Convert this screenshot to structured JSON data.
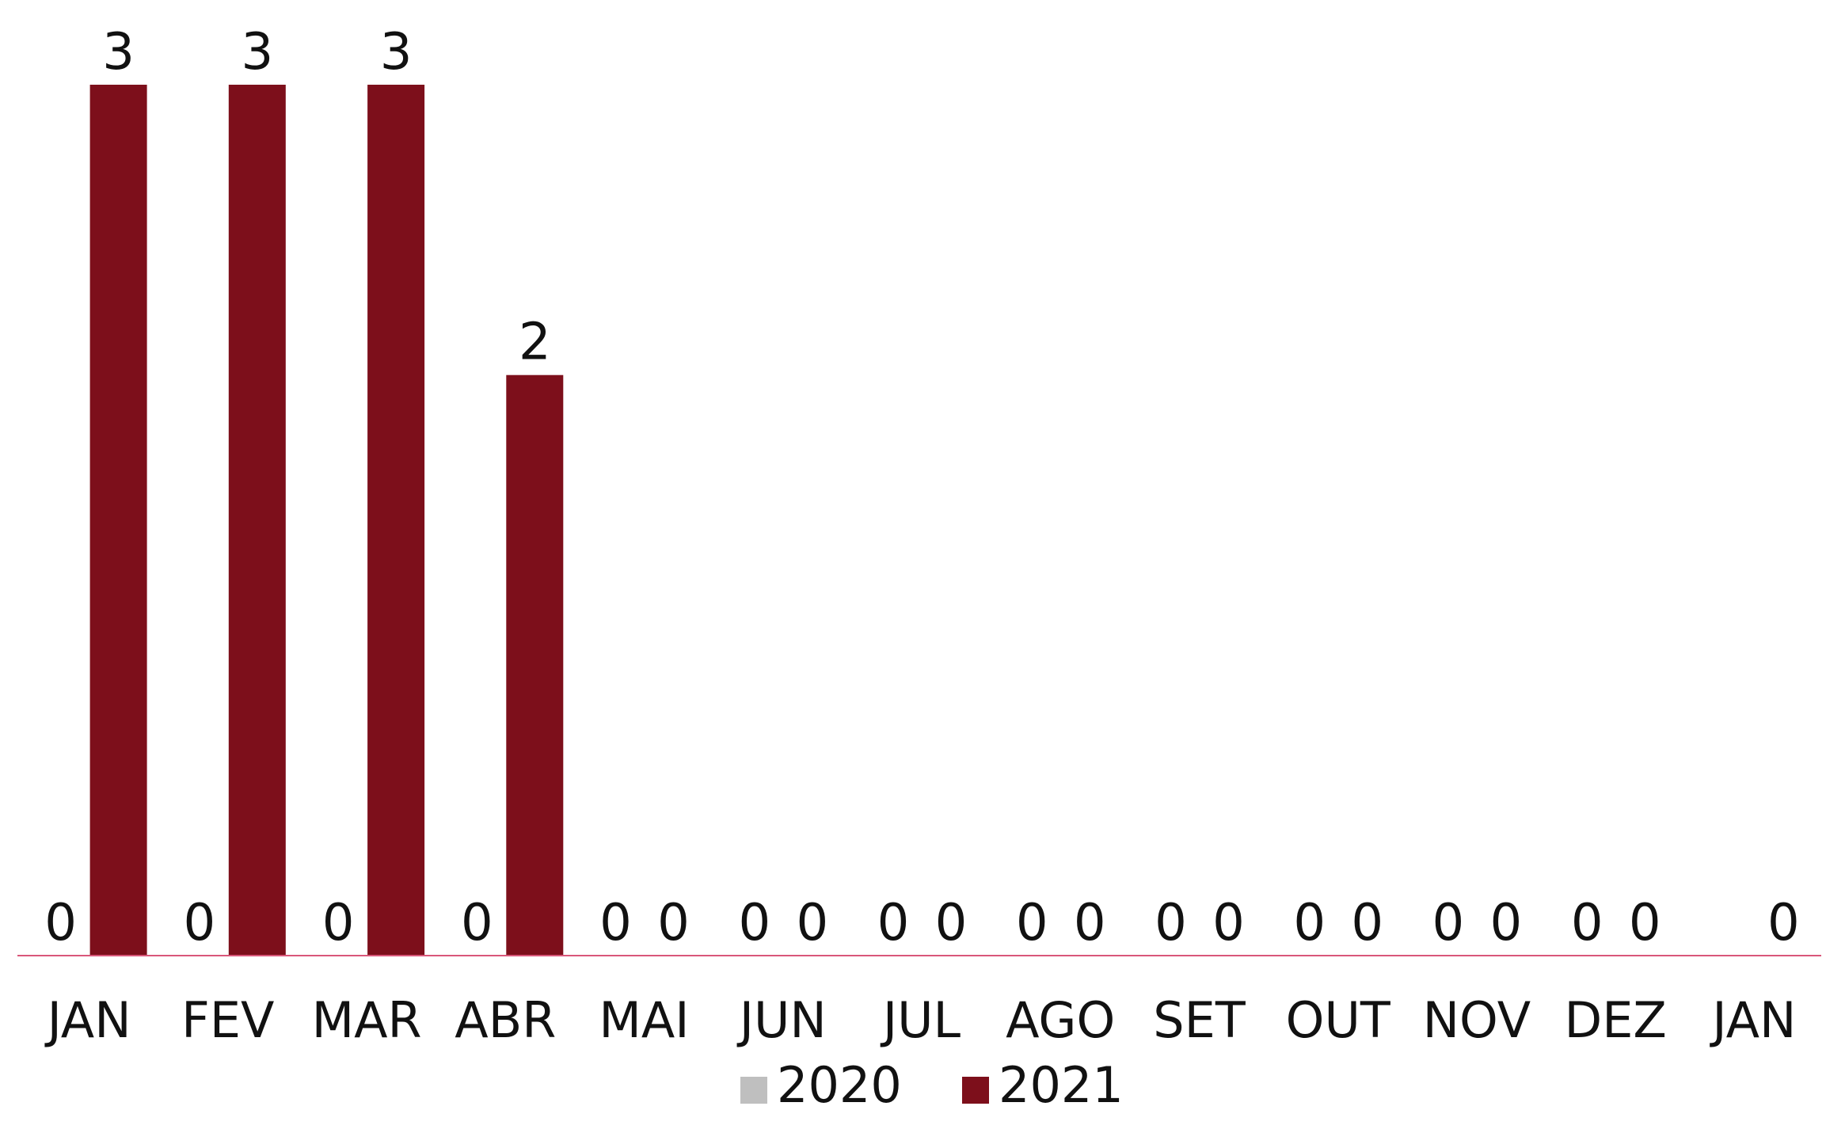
{
  "chart_data": {
    "type": "bar",
    "categories": [
      "JAN",
      "FEV",
      "MAR",
      "ABR",
      "MAI",
      "JUN",
      "JUL",
      "AGO",
      "SET",
      "OUT",
      "NOV",
      "DEZ",
      "JAN"
    ],
    "series": [
      {
        "name": "2020",
        "color": "#bfbfbf",
        "values": [
          0,
          0,
          0,
          0,
          0,
          0,
          0,
          0,
          0,
          0,
          0,
          0,
          null
        ]
      },
      {
        "name": "2021",
        "color": "#7d0f1b",
        "values": [
          3,
          3,
          3,
          2,
          0,
          0,
          0,
          0,
          0,
          0,
          0,
          0,
          0
        ]
      }
    ],
    "ylim": [
      0,
      3
    ],
    "grid": false,
    "axis_color": "#d9577a",
    "legend_position": "bottom-center",
    "data_labels": true
  }
}
